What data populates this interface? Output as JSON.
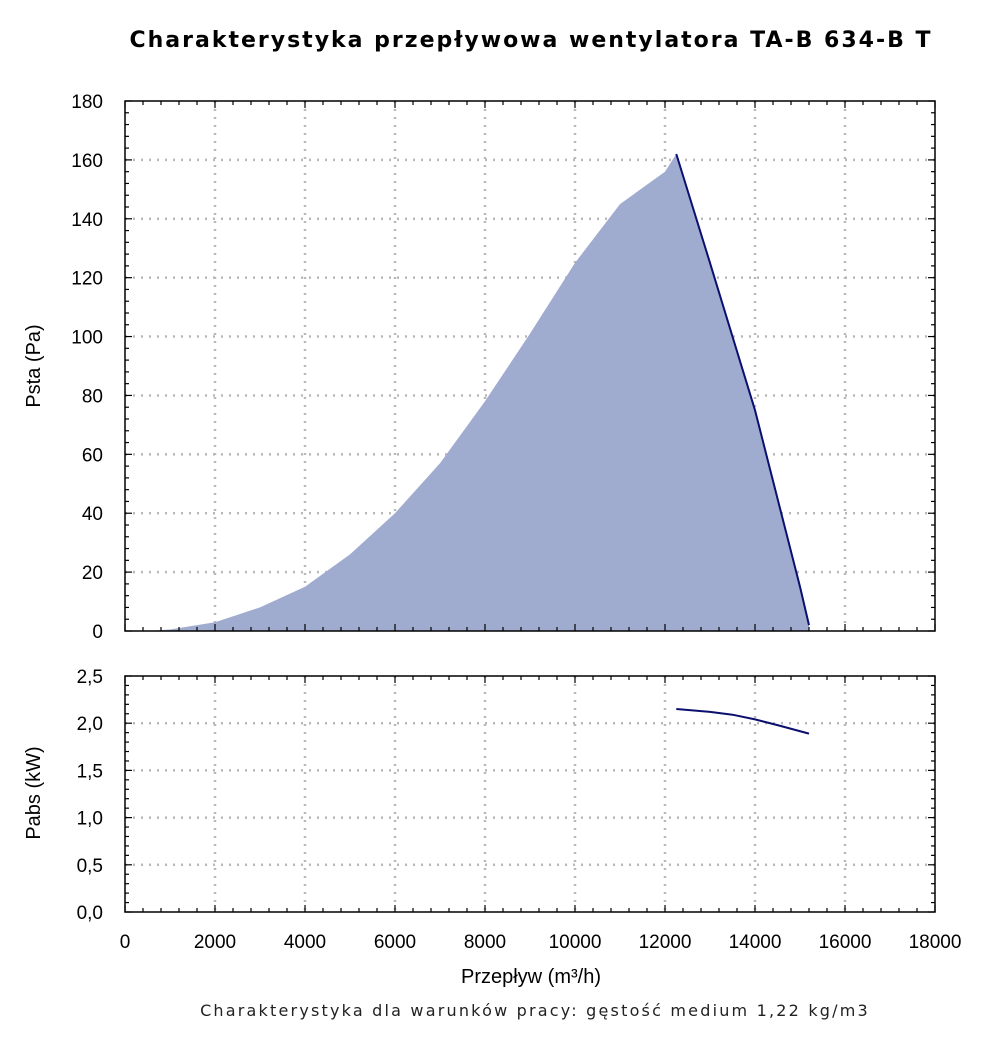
{
  "chart_data": {
    "title": "Charakterystyka przepływowa wentylatora TA-B 634-B T",
    "footnote": "Charakterystyka dla warunków pracy: gęstość medium 1,22 kg/m3",
    "xlabel": "Przepływ (m³/h)",
    "xlim": [
      0,
      18000
    ],
    "x_ticks": [
      "0",
      "2000",
      "4000",
      "6000",
      "8000",
      "10000",
      "12000",
      "14000",
      "16000",
      "18000"
    ],
    "grid": true,
    "colors": {
      "area": "#9fabcf",
      "line": "#0b0f6e",
      "grid": "#b8b8b8"
    },
    "panels": [
      {
        "type": "area",
        "ylabel": "Psta (Pa)",
        "ylim": [
          0,
          180
        ],
        "y_ticks": [
          "0",
          "20",
          "40",
          "60",
          "80",
          "100",
          "120",
          "140",
          "160",
          "180"
        ],
        "series": [
          {
            "x": [
              500,
              1000,
              2000,
              3000,
              4000,
              5000,
              6000,
              7000,
              8000,
              9000,
              10000,
              11000,
              12000,
              12250,
              13000,
              14000,
              15000,
              15200
            ],
            "y": [
              0,
              0.5,
              3,
              8,
              15,
              26,
              40,
              57,
              78,
              101,
              125,
              145,
              156,
              162,
              125,
              75,
              15,
              2
            ]
          }
        ]
      },
      {
        "type": "line",
        "ylabel": "Pabs (kW)",
        "ylim": [
          0,
          2.5
        ],
        "y_ticks": [
          "0,0",
          "0,5",
          "1,0",
          "1,5",
          "2,0",
          "2,5"
        ],
        "series": [
          {
            "x": [
              12250,
              13000,
              13500,
              14000,
              14500,
              15200
            ],
            "y": [
              2.15,
              2.12,
              2.09,
              2.04,
              1.98,
              1.89
            ]
          }
        ]
      }
    ]
  }
}
